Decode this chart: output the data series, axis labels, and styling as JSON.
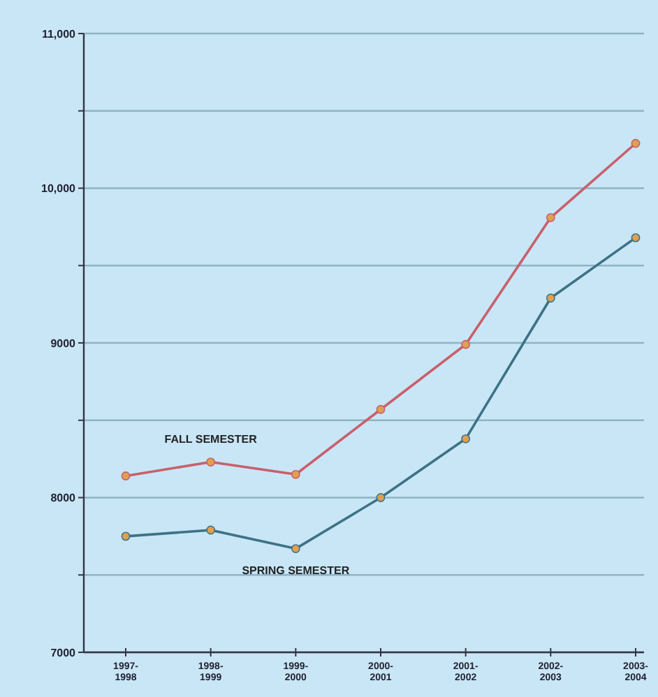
{
  "chart_data": {
    "type": "line",
    "categories": [
      "1997-1998",
      "1998-1999",
      "1999-2000",
      "2000-2001",
      "2001-2002",
      "2002-2003",
      "2003-2004"
    ],
    "series": [
      {
        "name": "FALL SEMESTER",
        "color": "#c8606c",
        "values": [
          8140,
          8230,
          8150,
          8570,
          8990,
          9810,
          10290
        ]
      },
      {
        "name": "SPRING SEMESTER",
        "color": "#3d7285",
        "values": [
          7750,
          7790,
          7670,
          8000,
          8380,
          9290,
          9680
        ]
      }
    ],
    "ylim": [
      7000,
      11000
    ],
    "yticks": [
      7000,
      {
        "value": 7500,
        "label": null
      },
      8000,
      {
        "value": 8500,
        "label": null
      },
      9000,
      {
        "value": 9500,
        "label": null
      },
      {
        "value": 10000,
        "label": "10,000"
      },
      {
        "value": 10500,
        "label": null
      },
      {
        "value": 11000,
        "label": "11,000"
      }
    ],
    "grid": "y",
    "marker": "circle",
    "line_style": "solid"
  }
}
